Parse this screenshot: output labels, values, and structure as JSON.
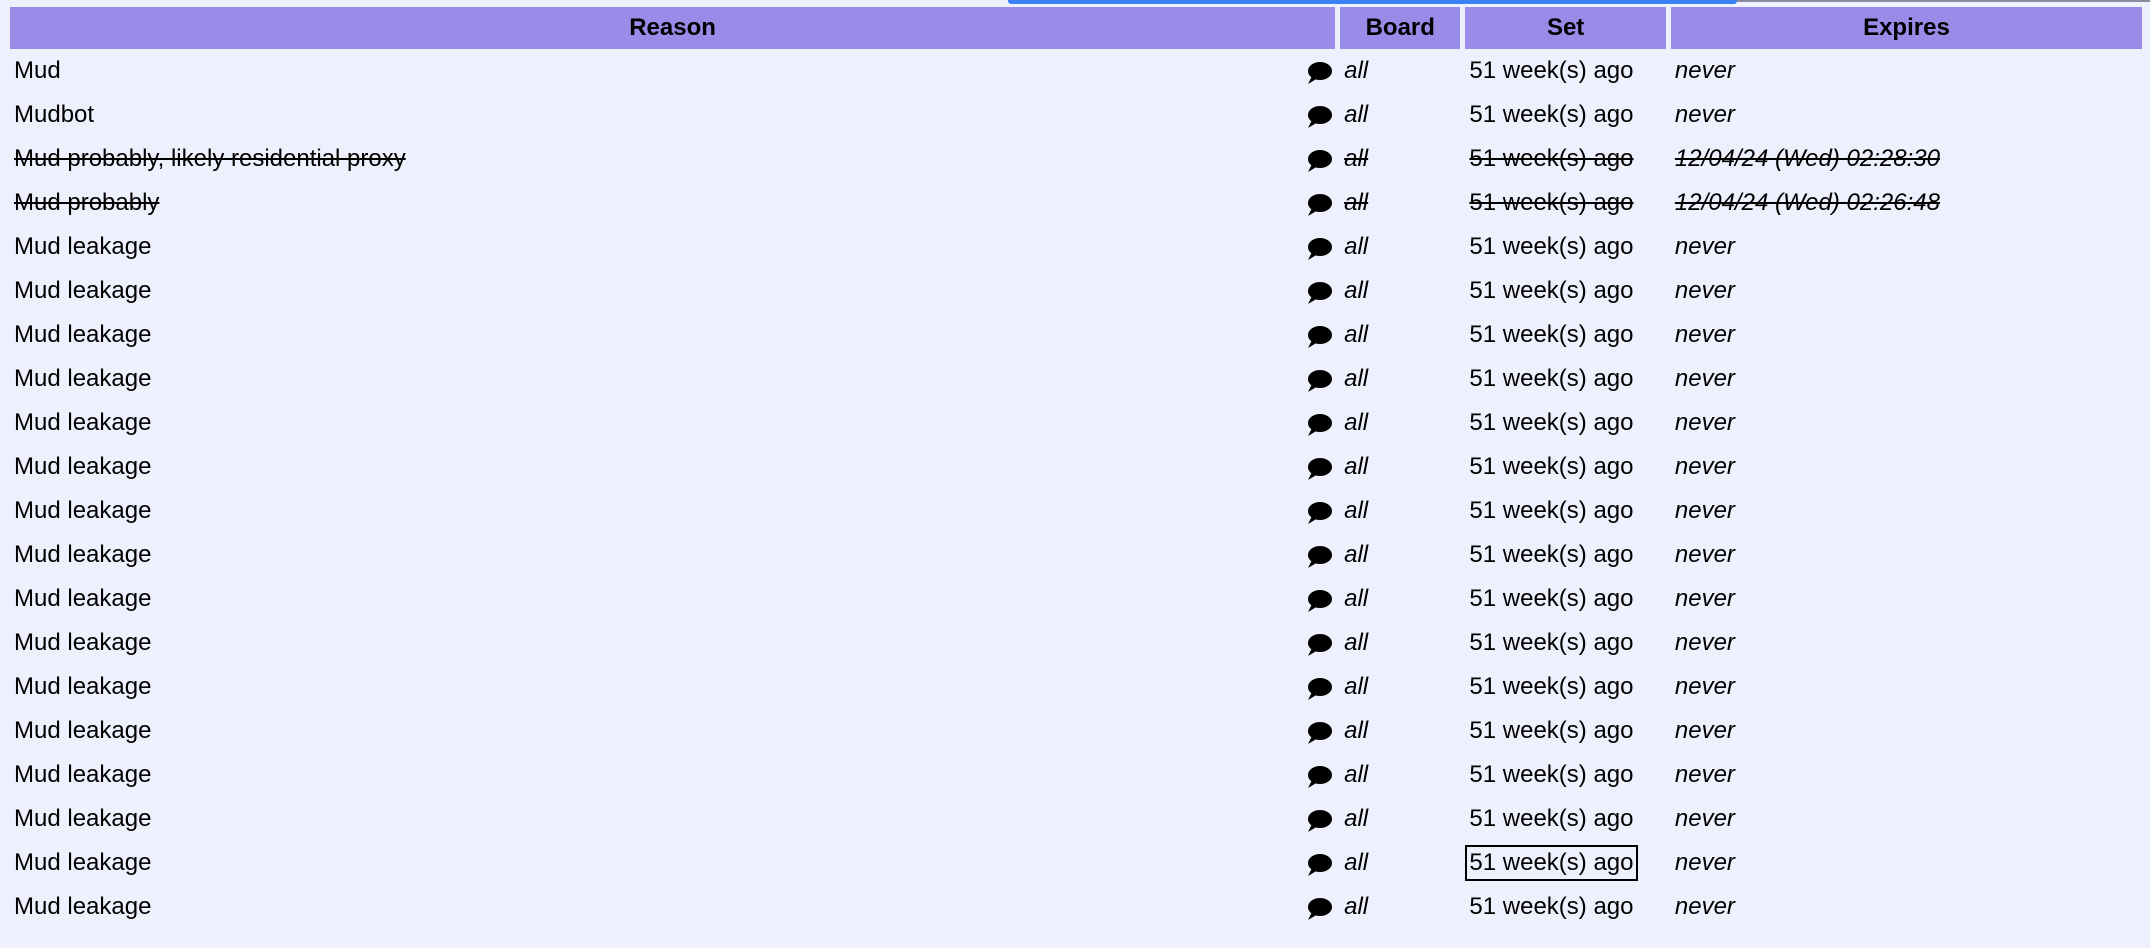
{
  "headers": {
    "reason": "Reason",
    "board": "Board",
    "set": "Set",
    "expires": "Expires"
  },
  "rows": [
    {
      "reason": "Mud",
      "board": "all",
      "set": "51 week(s) ago",
      "expires": "never",
      "struck": false
    },
    {
      "reason": "Mudbot",
      "board": "all",
      "set": "51 week(s) ago",
      "expires": "never",
      "struck": false
    },
    {
      "reason": "Mud probably, likely residential proxy",
      "board": "all",
      "set": "51 week(s) ago",
      "expires": "12/04/24 (Wed) 02:28:30",
      "struck": true
    },
    {
      "reason": "Mud probably",
      "board": "all",
      "set": "51 week(s) ago",
      "expires": "12/04/24 (Wed) 02:26:48",
      "struck": true
    },
    {
      "reason": "Mud leakage",
      "board": "all",
      "set": "51 week(s) ago",
      "expires": "never",
      "struck": false
    },
    {
      "reason": "Mud leakage",
      "board": "all",
      "set": "51 week(s) ago",
      "expires": "never",
      "struck": false
    },
    {
      "reason": "Mud leakage",
      "board": "all",
      "set": "51 week(s) ago",
      "expires": "never",
      "struck": false
    },
    {
      "reason": "Mud leakage",
      "board": "all",
      "set": "51 week(s) ago",
      "expires": "never",
      "struck": false
    },
    {
      "reason": "Mud leakage",
      "board": "all",
      "set": "51 week(s) ago",
      "expires": "never",
      "struck": false
    },
    {
      "reason": "Mud leakage",
      "board": "all",
      "set": "51 week(s) ago",
      "expires": "never",
      "struck": false
    },
    {
      "reason": "Mud leakage",
      "board": "all",
      "set": "51 week(s) ago",
      "expires": "never",
      "struck": false
    },
    {
      "reason": "Mud leakage",
      "board": "all",
      "set": "51 week(s) ago",
      "expires": "never",
      "struck": false
    },
    {
      "reason": "Mud leakage",
      "board": "all",
      "set": "51 week(s) ago",
      "expires": "never",
      "struck": false
    },
    {
      "reason": "Mud leakage",
      "board": "all",
      "set": "51 week(s) ago",
      "expires": "never",
      "struck": false
    },
    {
      "reason": "Mud leakage",
      "board": "all",
      "set": "51 week(s) ago",
      "expires": "never",
      "struck": false
    },
    {
      "reason": "Mud leakage",
      "board": "all",
      "set": "51 week(s) ago",
      "expires": "never",
      "struck": false
    },
    {
      "reason": "Mud leakage",
      "board": "all",
      "set": "51 week(s) ago",
      "expires": "never",
      "struck": false
    },
    {
      "reason": "Mud leakage",
      "board": "all",
      "set": "51 week(s) ago",
      "expires": "never",
      "struck": false
    },
    {
      "reason": "Mud leakage",
      "board": "all",
      "set": "51 week(s) ago",
      "expires": "never",
      "struck": false,
      "focused": true
    },
    {
      "reason": "Mud leakage",
      "board": "all",
      "set": "51 week(s) ago",
      "expires": "never",
      "struck": false
    }
  ],
  "icons": {
    "comment": "speech-bubble-icon"
  },
  "colors": {
    "header_bg": "#998ce8",
    "page_bg": "#eef1fd",
    "top_bar": "#3b82f6"
  }
}
